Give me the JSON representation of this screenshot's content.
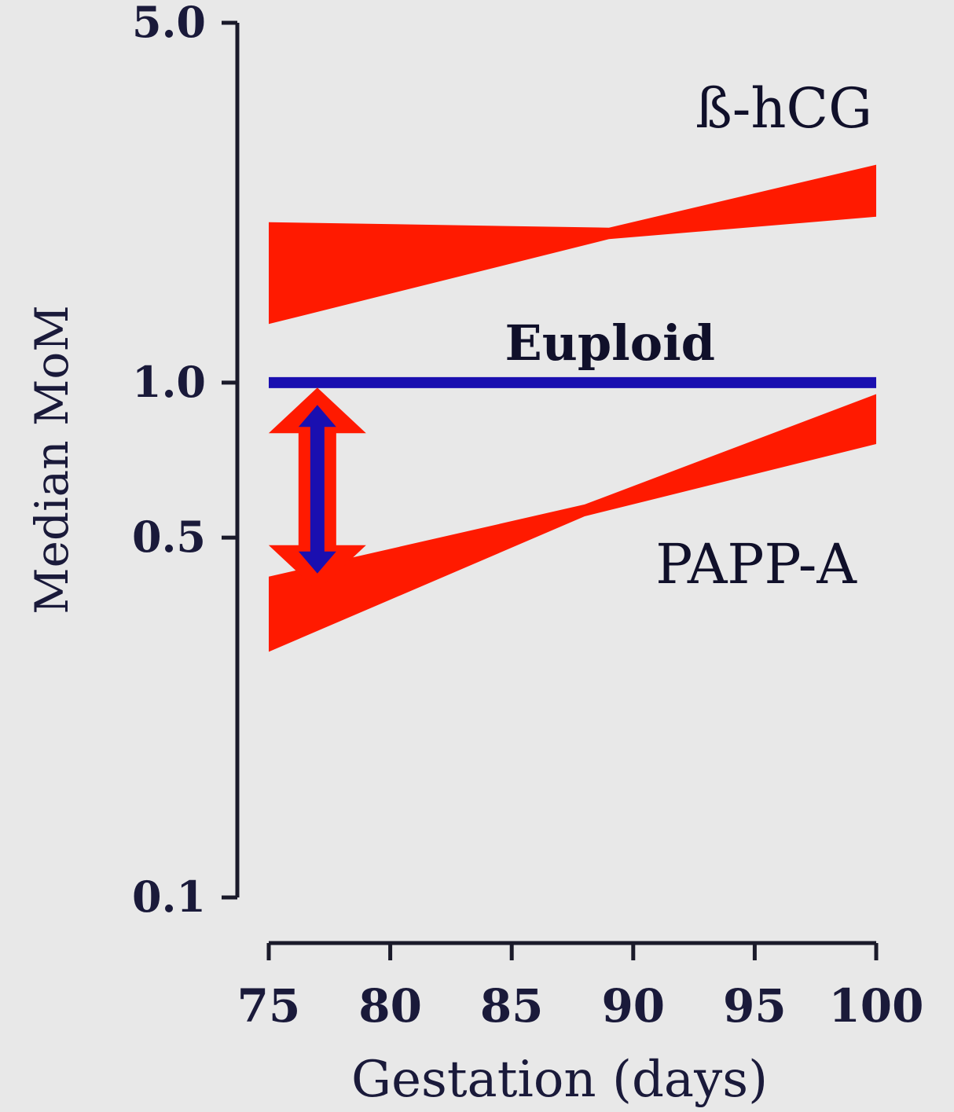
{
  "chart_data": {
    "type": "area",
    "title": "",
    "xlabel": "Gestation (days)",
    "ylabel": "Median MoM",
    "y_scale": "log",
    "xlim": [
      75,
      100
    ],
    "ylim": [
      0.1,
      5.0
    ],
    "x_ticks": [
      "75",
      "80",
      "85",
      "90",
      "95",
      "100"
    ],
    "y_ticks": [
      "0.1",
      "0.5",
      "1.0",
      "5.0"
    ],
    "y_tick_values": [
      0.1,
      0.5,
      1.0,
      5.0
    ],
    "grid": false,
    "series": [
      {
        "name": "ß-hCG",
        "kind": "band",
        "color": "#ff1a00",
        "x": [
          75,
          89,
          100
        ],
        "upper": [
          2.05,
          2.0,
          2.65
        ],
        "lower": [
          1.3,
          1.9,
          2.1
        ]
      },
      {
        "name": "Euploid",
        "kind": "line",
        "color": "#1a0fb0",
        "x": [
          75,
          100
        ],
        "y": [
          1.0,
          1.0
        ]
      },
      {
        "name": "PAPP-A",
        "kind": "band",
        "color": "#ff1a00",
        "x": [
          75,
          88,
          100
        ],
        "upper": [
          0.42,
          0.58,
          0.95
        ],
        "lower": [
          0.3,
          0.55,
          0.76
        ]
      }
    ],
    "annotations": [
      {
        "kind": "double-arrow",
        "fill": "#ff1a00",
        "stroke": "#1a0fb0",
        "x": 77,
        "y_from": 0.47,
        "y_to": 0.88
      }
    ]
  }
}
